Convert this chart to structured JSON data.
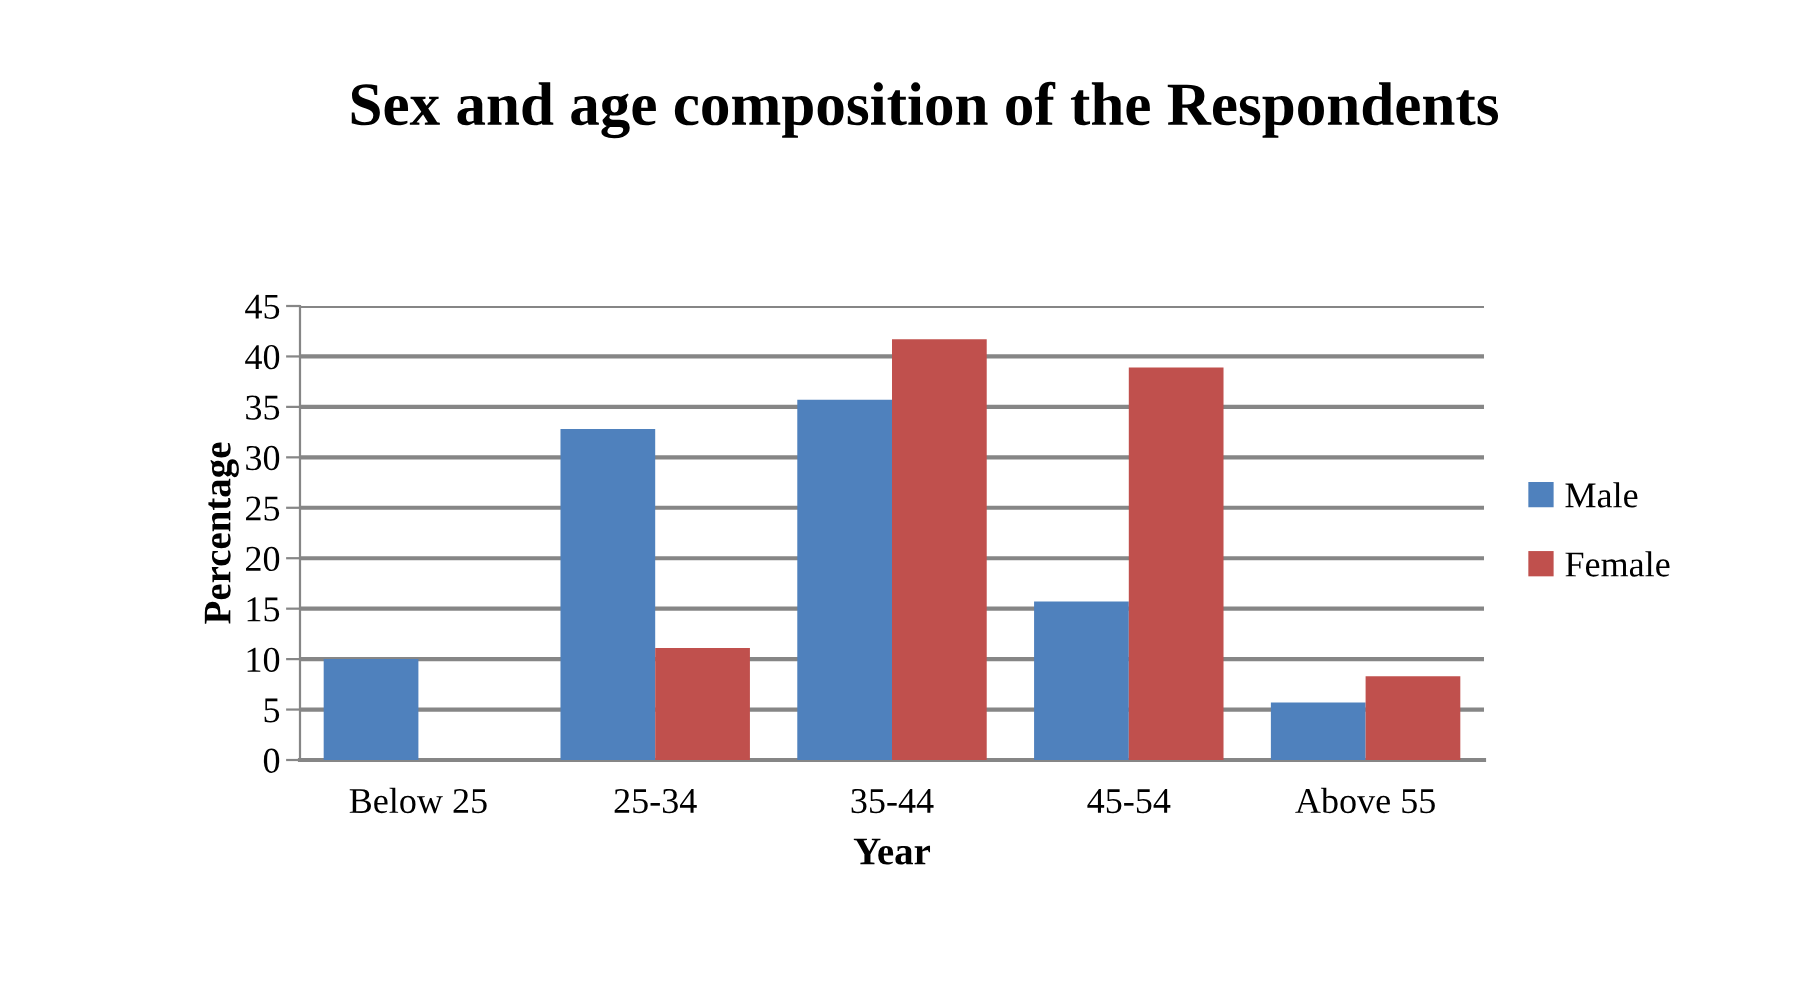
{
  "chart_data": {
    "type": "bar",
    "title": "Sex and age composition of the Respondents",
    "xlabel": "Year",
    "ylabel": "Percentage",
    "categories": [
      "Below 25",
      "25-34",
      "35-44",
      "45-54",
      "Above 55"
    ],
    "series": [
      {
        "name": "Male",
        "color": "#4f81bd",
        "values": [
          10,
          32.8,
          35.7,
          15.7,
          5.7
        ]
      },
      {
        "name": "Female",
        "color": "#c0504d",
        "values": [
          0,
          11.1,
          41.7,
          38.9,
          8.3
        ]
      }
    ],
    "ylim": [
      0,
      45
    ],
    "yticks": [
      0,
      5,
      10,
      15,
      20,
      25,
      30,
      35,
      40,
      45
    ],
    "grid": "y",
    "legend": "right"
  }
}
